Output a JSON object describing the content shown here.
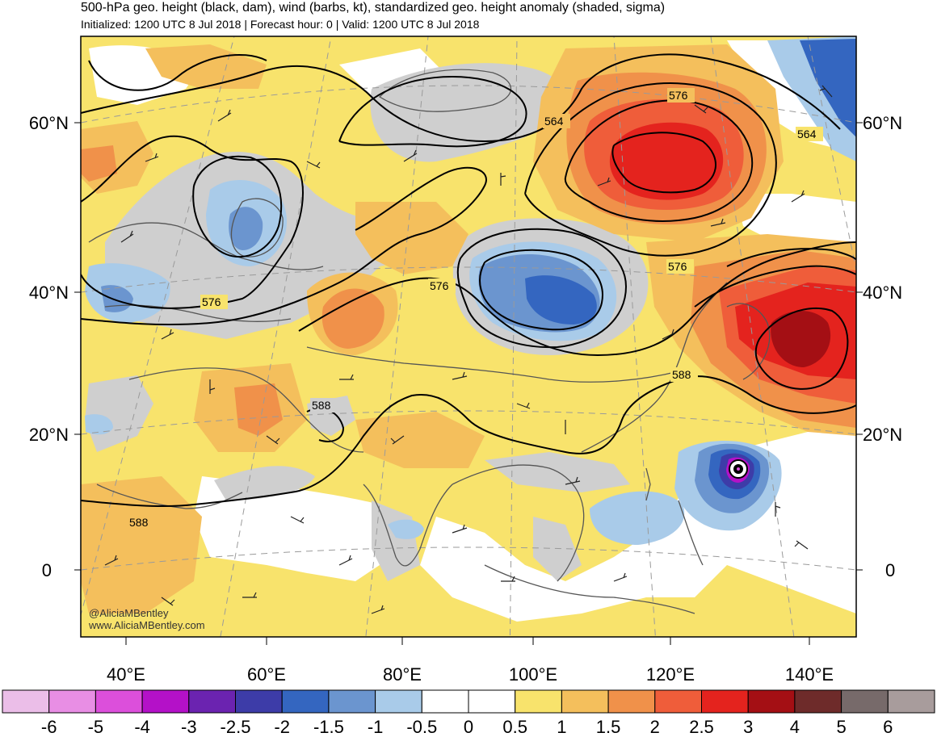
{
  "title": "500-hPa geo. height (black, dam), wind (barbs, kt), standardized geo. height anomaly (shaded, sigma)",
  "subtitle": "Initialized: 1200 UTC 8 Jul 2018 | Forecast hour: 0 | Valid: 1200 UTC 8 Jul 2018",
  "credit": {
    "handle": "@AliciaMBentley",
    "site": "www.AliciaMBentley.com"
  },
  "axes": {
    "lat_labels_left": [
      "60°N",
      "40°N",
      "20°N",
      "0"
    ],
    "lat_labels_right": [
      "60°N",
      "40°N",
      "20°N",
      "0"
    ],
    "lon_labels": [
      "40°E",
      "60°E",
      "80°E",
      "100°E",
      "120°E",
      "140°E"
    ]
  },
  "contour_labels": [
    "564",
    "576",
    "564",
    "576",
    "576",
    "576",
    "588",
    "588",
    "588"
  ],
  "colorbar": {
    "ticks": [
      "-6",
      "-5",
      "-4",
      "-3",
      "-2.5",
      "-2",
      "-1.5",
      "-1",
      "-0.5",
      "0",
      "0.5",
      "1",
      "1.5",
      "2",
      "2.5",
      "3",
      "4",
      "5",
      "6"
    ],
    "colors": [
      "#ebbee8",
      "#e88ee4",
      "#dc4fdb",
      "#b411c8",
      "#6b23b0",
      "#3d3ca8",
      "#3466c0",
      "#6b95cf",
      "#a9cbe9",
      "#ffffff",
      "#ffffff",
      "#f8e36c",
      "#f4bf5c",
      "#f0914a",
      "#ef5d3a",
      "#e4231e",
      "#a40f14",
      "#6e2b2a",
      "#776a6a",
      "#a89c9c"
    ]
  },
  "shading_colors": {
    "land_gray": "#cfcfcf",
    "ocean_white": "#ffffff",
    "yellow": "#f8e36c",
    "light_orange": "#f4bf5c",
    "orange": "#f0914a",
    "red_orange": "#ef5d3a",
    "red": "#e4231e",
    "dark_red": "#a40f14",
    "light_blue": "#a9cbe9",
    "mid_blue": "#6b95cf",
    "blue": "#3466c0",
    "dark_blue": "#3d3ca8",
    "purple": "#b411c8",
    "magenta": "#dc4fdb"
  }
}
